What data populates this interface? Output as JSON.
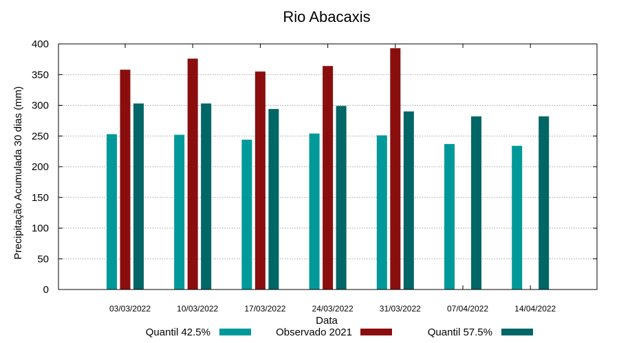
{
  "chart_data": {
    "type": "bar",
    "title": "Rio Abacaxis",
    "xlabel": "Data",
    "ylabel": "Precipitação Acumulada 30 dias (mm)",
    "ylim": [
      0,
      400
    ],
    "yticks": [
      0,
      50,
      100,
      150,
      200,
      250,
      300,
      350,
      400
    ],
    "grid": true,
    "legend_position": "bottom",
    "categories": [
      "03/03/2022",
      "10/03/2022",
      "17/03/2022",
      "24/03/2022",
      "31/03/2022",
      "07/04/2022",
      "14/04/2022"
    ],
    "series": [
      {
        "name": "Quantil 42.5%",
        "color": "#009999",
        "values": [
          253,
          252,
          244,
          254,
          251,
          237,
          234
        ]
      },
      {
        "name": "Observado 2021",
        "color": "#8b0e0e",
        "values": [
          358,
          376,
          355,
          364,
          393,
          null,
          null
        ]
      },
      {
        "name": "Quantil 57.5%",
        "color": "#006666",
        "values": [
          303,
          303,
          294,
          299,
          290,
          282,
          282
        ]
      }
    ]
  }
}
